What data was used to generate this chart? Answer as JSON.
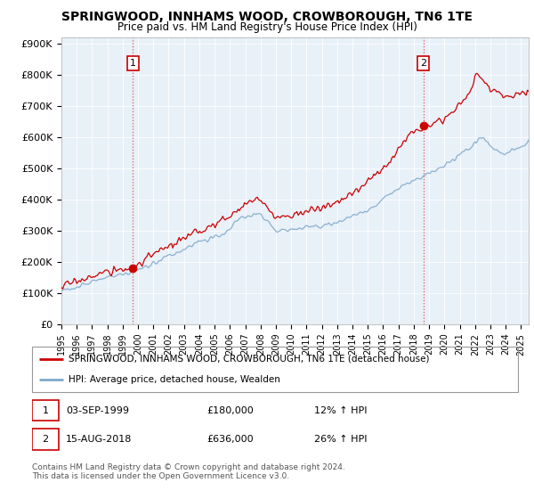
{
  "title": "SPRINGWOOD, INNHAMS WOOD, CROWBOROUGH, TN6 1TE",
  "subtitle": "Price paid vs. HM Land Registry's House Price Index (HPI)",
  "ylabel_ticks": [
    "£0",
    "£100K",
    "£200K",
    "£300K",
    "£400K",
    "£500K",
    "£600K",
    "£700K",
    "£800K",
    "£900K"
  ],
  "ytick_values": [
    0,
    100000,
    200000,
    300000,
    400000,
    500000,
    600000,
    700000,
    800000,
    900000
  ],
  "ylim": [
    0,
    920000
  ],
  "xlim_start": 1995.0,
  "xlim_end": 2025.5,
  "sale1_x": 1999.67,
  "sale1_y": 180000,
  "sale1_label": "1",
  "sale2_x": 2018.62,
  "sale2_y": 636000,
  "sale2_label": "2",
  "sale1_date": "03-SEP-1999",
  "sale1_price": "£180,000",
  "sale1_hpi": "12% ↑ HPI",
  "sale2_date": "15-AUG-2018",
  "sale2_price": "£636,000",
  "sale2_hpi": "26% ↑ HPI",
  "legend_label1": "SPRINGWOOD, INNHAMS WOOD, CROWBOROUGH, TN6 1TE (detached house)",
  "legend_label2": "HPI: Average price, detached house, Wealden",
  "footnote": "Contains HM Land Registry data © Crown copyright and database right 2024.\nThis data is licensed under the Open Government Licence v3.0.",
  "line1_color": "#cc0000",
  "line2_color": "#7faacc",
  "dashed_color": "#dd4444",
  "plot_bg_color": "#e8f0f8",
  "title_fontsize": 10,
  "subtitle_fontsize": 9
}
